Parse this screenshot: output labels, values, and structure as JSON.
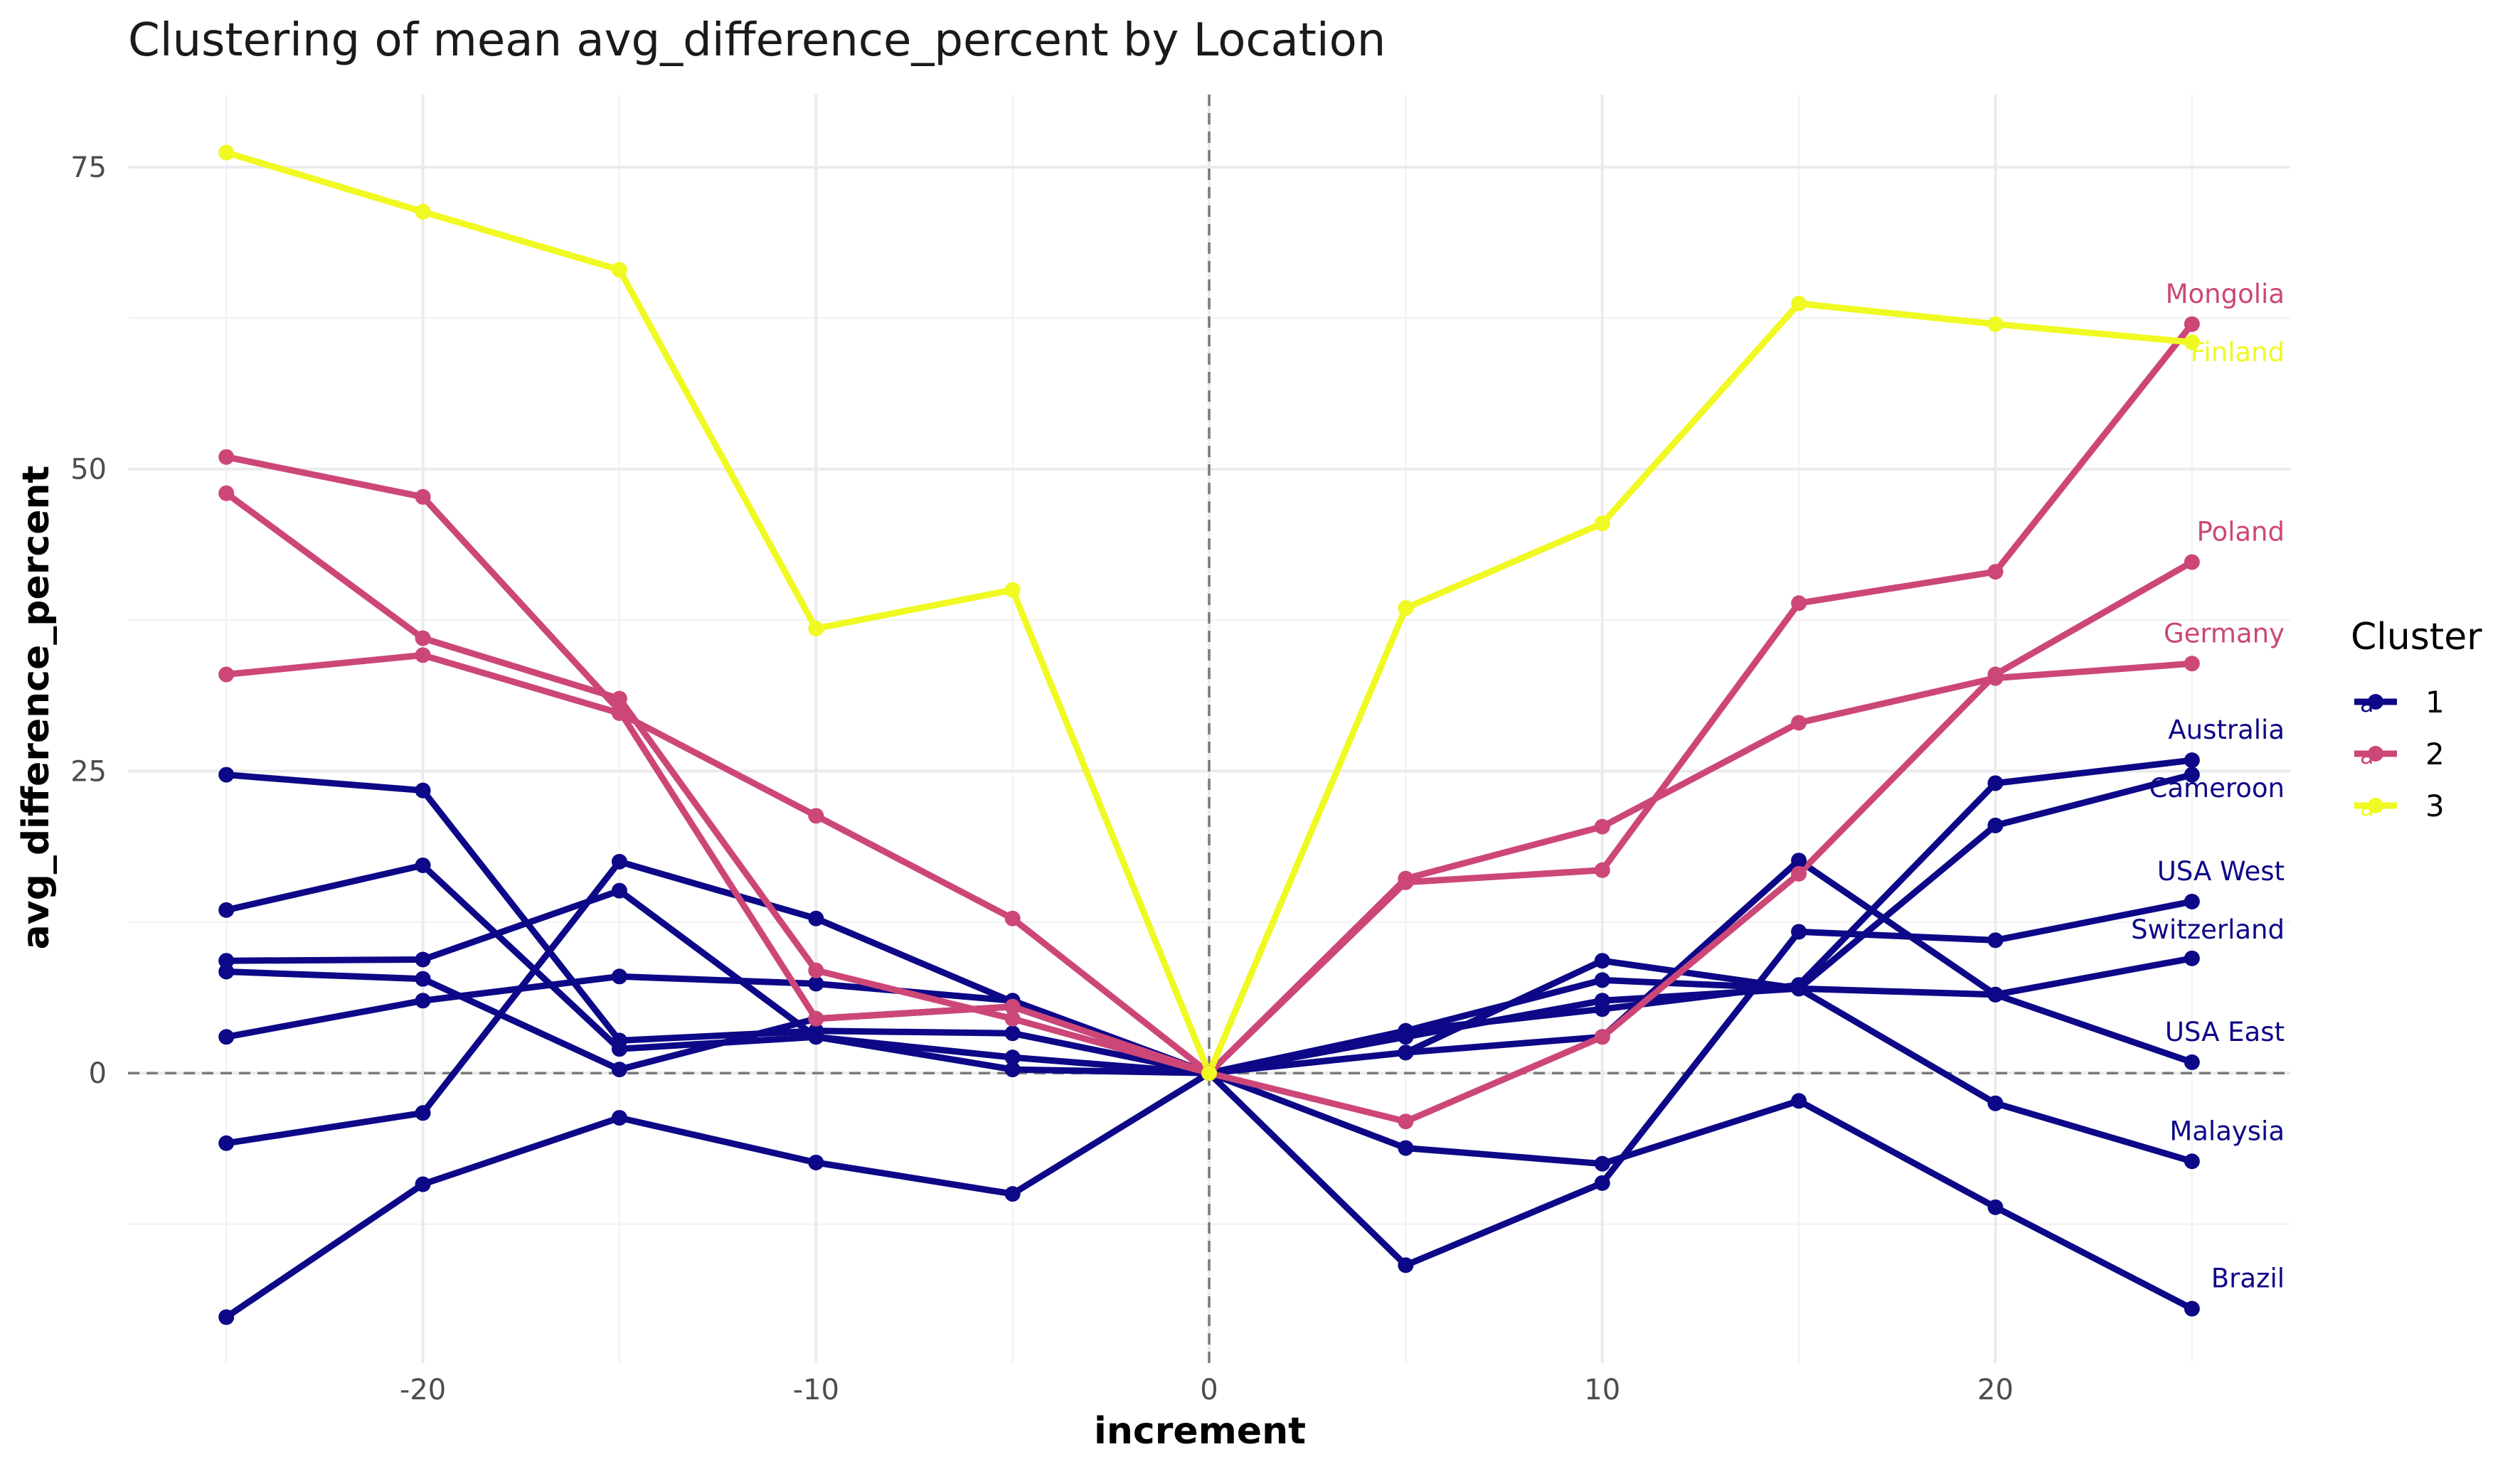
{
  "chart_data": {
    "type": "line",
    "title": "Clustering of mean avg_difference_percent by Location",
    "xlabel": "increment",
    "ylabel": "avg_difference_percent",
    "xlim": [
      -27.5,
      27.5
    ],
    "ylim": [
      -24,
      81
    ],
    "xticks": [
      -20,
      -10,
      0,
      10,
      20
    ],
    "yticks": [
      0,
      25,
      50,
      75
    ],
    "x": [
      -25,
      -20,
      -15,
      -10,
      -5,
      0,
      5,
      10,
      15,
      20,
      25
    ],
    "grid": true,
    "reference_lines": {
      "x": 0,
      "y": 0
    },
    "legend": {
      "title": "Cluster",
      "position": "right",
      "glyph_text": "a"
    },
    "clusters": [
      {
        "name": "1",
        "color": "#0d0887"
      },
      {
        "name": "2",
        "color": "#cc4778"
      },
      {
        "name": "3",
        "color": "#f0f921"
      }
    ],
    "series": [
      {
        "label": "Finland",
        "cluster": "3",
        "values": [
          76.2,
          71.3,
          66.5,
          36.8,
          40.0,
          0,
          38.5,
          45.5,
          63.7,
          62.0,
          60.5
        ]
      },
      {
        "label": "Mongolia",
        "cluster": "2",
        "values": [
          51.0,
          47.7,
          30.0,
          4.5,
          5.5,
          0,
          15.8,
          16.8,
          38.9,
          41.5,
          62.0
        ]
      },
      {
        "label": "Poland",
        "cluster": "2",
        "values": [
          48.0,
          36.0,
          31.0,
          8.5,
          4.5,
          0,
          -4.0,
          3.0,
          16.5,
          33.0,
          42.3
        ]
      },
      {
        "label": "Germany",
        "cluster": "2",
        "values": [
          33.0,
          34.6,
          29.8,
          21.3,
          12.8,
          0,
          16.1,
          20.4,
          29.0,
          32.7,
          33.9
        ]
      },
      {
        "label": "Australia",
        "cluster": "1",
        "values": [
          24.7,
          23.4,
          2.7,
          3.5,
          3.3,
          0,
          3.5,
          5.3,
          7.3,
          24.0,
          25.9
        ]
      },
      {
        "label": "Cameroon",
        "cluster": "1",
        "values": [
          13.5,
          17.2,
          2.0,
          3.0,
          0.3,
          0,
          3.0,
          6.0,
          7.0,
          20.5,
          24.7
        ]
      },
      {
        "label": "USA West",
        "cluster": "1",
        "values": [
          8.4,
          7.8,
          0.3,
          4.5,
          5.5,
          0,
          -15.9,
          -9.1,
          11.7,
          11.0,
          14.2
        ]
      },
      {
        "label": "Switzerland",
        "cluster": "1",
        "values": [
          9.3,
          9.4,
          15.1,
          3.0,
          1.3,
          0,
          1.7,
          9.3,
          7.0,
          6.5,
          9.5
        ]
      },
      {
        "label": "USA East",
        "cluster": "1",
        "values": [
          3.0,
          6.0,
          8.0,
          7.4,
          6.0,
          0,
          1.7,
          3.0,
          17.6,
          6.5,
          0.9
        ]
      },
      {
        "label": "Malaysia",
        "cluster": "1",
        "values": [
          -5.8,
          -3.3,
          17.5,
          12.8,
          5.9,
          0,
          3.5,
          7.7,
          7.0,
          -2.5,
          -7.3
        ]
      },
      {
        "label": "Brazil",
        "cluster": "1",
        "values": [
          -20.2,
          -9.2,
          -3.7,
          -7.4,
          -10.0,
          0,
          -6.2,
          -7.5,
          -2.3,
          -11.1,
          -19.5
        ]
      }
    ]
  }
}
